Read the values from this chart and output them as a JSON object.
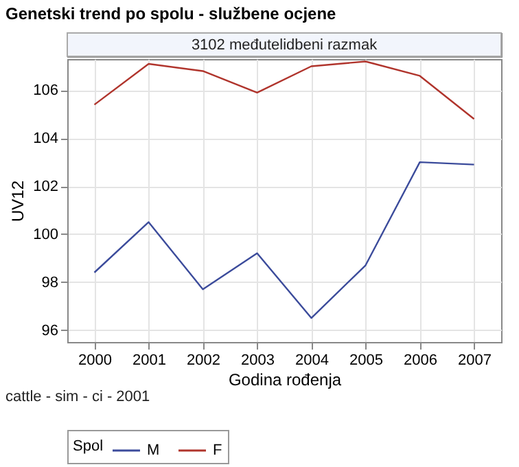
{
  "chart_data": {
    "type": "line",
    "title": "Genetski trend po spolu - službene ocjene",
    "subtitle": "3102 međutelidbeni razmak",
    "xlabel": "Godina rođenja",
    "ylabel": "UV12",
    "legend_title": "Spol",
    "categories": [
      "2000",
      "2001",
      "2002",
      "2003",
      "2004",
      "2005",
      "2006",
      "2007"
    ],
    "series": [
      {
        "name": "M",
        "color": "#3b4b9b",
        "values": [
          98.4,
          100.5,
          97.7,
          99.2,
          96.5,
          98.7,
          103.0,
          102.9
        ]
      },
      {
        "name": "F",
        "color": "#b0342c",
        "values": [
          105.4,
          107.1,
          106.8,
          105.9,
          107.0,
          107.2,
          106.6,
          104.8
        ]
      }
    ],
    "ylim": [
      95.5,
      107.3
    ],
    "yticks": [
      96,
      98,
      100,
      102,
      104,
      106
    ],
    "grid": true,
    "legend": "bottom",
    "marker": "none",
    "line_style": "solid",
    "annotations": [
      "cattle - sim - ci - 2001"
    ]
  }
}
